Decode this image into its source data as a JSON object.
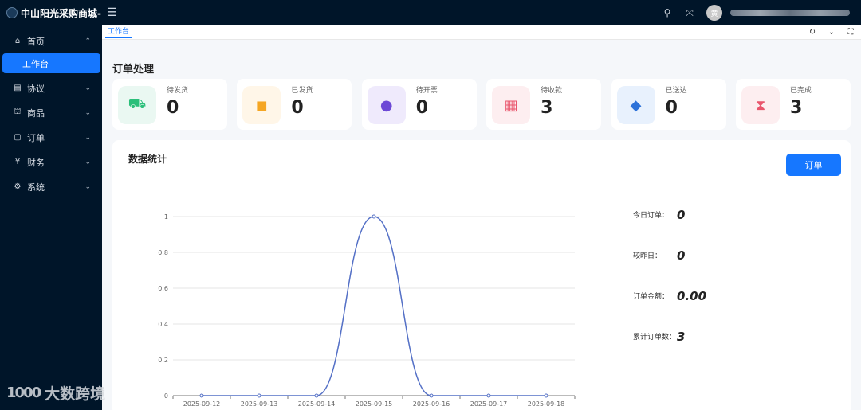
{
  "app": {
    "title": "中山阳光采购商城-..."
  },
  "topbar": {
    "search_icon": "search-icon",
    "fullscreen_icon": "fullscreen-icon",
    "avatar_text": "黄"
  },
  "sidebar": {
    "items": [
      {
        "label": "首页",
        "icon": "⌂",
        "expanded": true
      },
      {
        "label": "协议",
        "icon": "▤"
      },
      {
        "label": "商品",
        "icon": "⛫"
      },
      {
        "label": "订单",
        "icon": "▢"
      },
      {
        "label": "财务",
        "icon": "¥"
      },
      {
        "label": "系统",
        "icon": "⚙"
      }
    ],
    "sub_item": {
      "label": "工作台"
    }
  },
  "tabs": {
    "active": "工作台"
  },
  "orders": {
    "title": "订单处理",
    "cards": [
      {
        "label": "待发货",
        "value": "0",
        "icon": "⛟",
        "bg": "#eaf8f2",
        "color": "#2bbf7a"
      },
      {
        "label": "已发货",
        "value": "0",
        "icon": "◼",
        "bg": "#fff6e8",
        "color": "#f5a623"
      },
      {
        "label": "待开票",
        "value": "0",
        "icon": "●",
        "bg": "#efeafc",
        "color": "#6c48d6"
      },
      {
        "label": "待收款",
        "value": "3",
        "icon": "▦",
        "bg": "#fdeef0",
        "color": "#e9566d"
      },
      {
        "label": "已送达",
        "value": "0",
        "icon": "◆",
        "bg": "#e8f1fd",
        "color": "#2d72d9"
      },
      {
        "label": "已完成",
        "value": "3",
        "icon": "⧗",
        "bg": "#fdeef0",
        "color": "#e9566d"
      }
    ]
  },
  "stats": {
    "title": "数据统计",
    "button_label": "订单",
    "metrics": [
      {
        "label": "今日订单：",
        "value": "0"
      },
      {
        "label": "较昨日：",
        "value": "0"
      },
      {
        "label": "订单金额：",
        "value": "0.00"
      },
      {
        "label": "累计订单数：",
        "value": "3"
      }
    ]
  },
  "watermark": {
    "logo": "1000",
    "text": "大数跨境"
  },
  "chart_data": {
    "type": "line",
    "categories": [
      "2025-09-12",
      "2025-09-13",
      "2025-09-14",
      "2025-09-15",
      "2025-09-16",
      "2025-09-17",
      "2025-09-18"
    ],
    "series": [
      {
        "values": [
          0,
          0,
          0,
          1,
          0,
          0,
          0
        ]
      }
    ],
    "yticks": [
      "0",
      "0.2",
      "0.4",
      "0.6",
      "0.8",
      "1"
    ],
    "ylim": [
      0,
      1
    ],
    "smooth": true,
    "grid": true,
    "color": "#5470c6"
  }
}
